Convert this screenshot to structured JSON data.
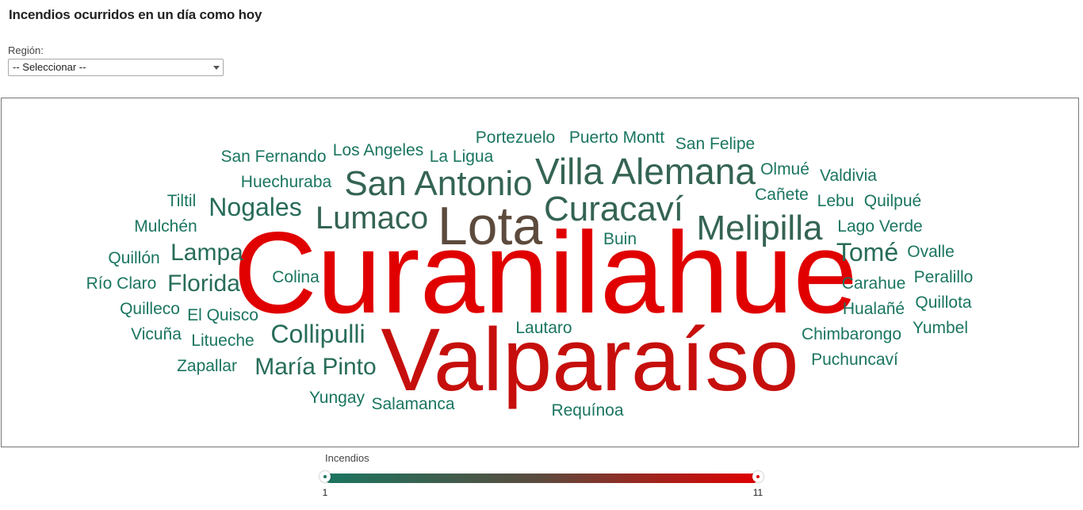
{
  "page": {
    "title": "Incendios ocurridos en un día como hoy"
  },
  "filters": {
    "region_label": "Región:",
    "region_selected": "-- Seleccionar --"
  },
  "legend": {
    "title": "Incendios",
    "min_label": "1",
    "max_label": "11",
    "color_low": "#1a7560",
    "color_mid": "#5c4a3d",
    "color_high": "#e00000"
  },
  "chart_data": {
    "type": "wordcloud",
    "metric": "Incendios",
    "range": [
      1,
      11
    ],
    "words": [
      {
        "text": "Curanilahue",
        "value": 11
      },
      {
        "text": "Valparaíso",
        "value": 10
      },
      {
        "text": "Lota",
        "value": 6
      },
      {
        "text": "Villa Alemana",
        "value": 3
      },
      {
        "text": "San Antonio",
        "value": 3
      },
      {
        "text": "Curacaví",
        "value": 3
      },
      {
        "text": "Melipilla",
        "value": 3
      },
      {
        "text": "Lumaco",
        "value": 3
      },
      {
        "text": "Nogales",
        "value": 2
      },
      {
        "text": "Lampa",
        "value": 2
      },
      {
        "text": "Florida",
        "value": 2
      },
      {
        "text": "Collipulli",
        "value": 2
      },
      {
        "text": "María Pinto",
        "value": 2
      },
      {
        "text": "Tomé",
        "value": 2
      },
      {
        "text": "Portezuelo",
        "value": 1
      },
      {
        "text": "Puerto Montt",
        "value": 1
      },
      {
        "text": "San Felipe",
        "value": 1
      },
      {
        "text": "San Fernando",
        "value": 1
      },
      {
        "text": "Los Angeles",
        "value": 1
      },
      {
        "text": "La Ligua",
        "value": 1
      },
      {
        "text": "Huechuraba",
        "value": 1
      },
      {
        "text": "Olmué",
        "value": 1
      },
      {
        "text": "Valdivia",
        "value": 1
      },
      {
        "text": "Tiltil",
        "value": 1
      },
      {
        "text": "Cañete",
        "value": 1
      },
      {
        "text": "Lebu",
        "value": 1
      },
      {
        "text": "Quilpué",
        "value": 1
      },
      {
        "text": "Mulchén",
        "value": 1
      },
      {
        "text": "Lago Verde",
        "value": 1
      },
      {
        "text": "Buin",
        "value": 1
      },
      {
        "text": "Quillón",
        "value": 1
      },
      {
        "text": "Ovalle",
        "value": 1
      },
      {
        "text": "Río Claro",
        "value": 1
      },
      {
        "text": "Colina",
        "value": 1
      },
      {
        "text": "Carahue",
        "value": 1
      },
      {
        "text": "Peralillo",
        "value": 1
      },
      {
        "text": "Quilleco",
        "value": 1
      },
      {
        "text": "El Quisco",
        "value": 1
      },
      {
        "text": "Hualañé",
        "value": 1
      },
      {
        "text": "Quillota",
        "value": 1
      },
      {
        "text": "Vicuña",
        "value": 1
      },
      {
        "text": "Litueche",
        "value": 1
      },
      {
        "text": "Lautaro",
        "value": 1
      },
      {
        "text": "Chimbarongo",
        "value": 1
      },
      {
        "text": "Yumbel",
        "value": 1
      },
      {
        "text": "Zapallar",
        "value": 1
      },
      {
        "text": "Puchuncaví",
        "value": 1
      },
      {
        "text": "Yungay",
        "value": 1
      },
      {
        "text": "Salamanca",
        "value": 1
      },
      {
        "text": "Requínoa",
        "value": 1
      }
    ]
  }
}
